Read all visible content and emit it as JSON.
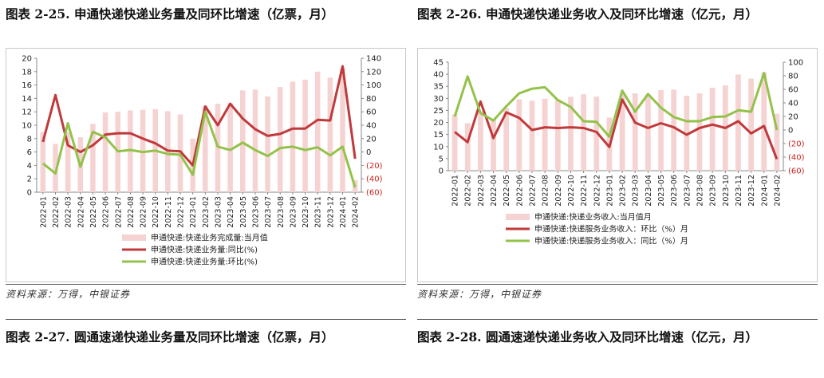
{
  "figures": [
    {
      "title": "图表 2-25. 申通快递快递业务量及同环比增速（亿票，月）",
      "source": "资料来源：万得，中银证券"
    },
    {
      "title": "图表 2-26. 申通快递快递业务收入及同环比增速（亿元，月）",
      "source": "资料来源：万得，中银证券"
    },
    {
      "title": "图表 2-27. 圆通速递快递业务量及同环比增速（亿票，月）"
    },
    {
      "title": "图表 2-28. 圆通速递快递业务收入及同环比增速（亿元，月）"
    }
  ],
  "colors": {
    "bar": "#f6d3d3",
    "red": "#c0393b",
    "green": "#93c24b",
    "neg": "#d0201c"
  },
  "chart_data": [
    {
      "type": "bar+line",
      "categories": [
        "2022-01",
        "2022-02",
        "2022-03",
        "2022-04",
        "2022-05",
        "2022-06",
        "2022-07",
        "2022-08",
        "2022-09",
        "2022-10",
        "2022-11",
        "2022-12",
        "2023-01",
        "2023-02",
        "2023-03",
        "2023-04",
        "2023-05",
        "2023-06",
        "2023-07",
        "2023-08",
        "2023-09",
        "2023-10",
        "2023-11",
        "2023-12",
        "2024-01",
        "2024-02"
      ],
      "left_axis": {
        "min": 0,
        "max": 20,
        "ticks": [
          "0",
          "2",
          "4",
          "6",
          "8",
          "10",
          "12",
          "14",
          "16",
          "18",
          "20"
        ]
      },
      "right_axis": {
        "min": -60,
        "max": 140,
        "ticks": [
          "(60)",
          "(40)",
          "(20)",
          "0",
          "20",
          "40",
          "60",
          "80",
          "100",
          "120",
          "140"
        ]
      },
      "series": [
        {
          "name": "申通快递:快递业务完成量:当月值",
          "kind": "bar",
          "axis": "left",
          "values": [
            9.0,
            7.2,
            9.0,
            8.2,
            10.2,
            11.9,
            12.0,
            12.2,
            12.3,
            12.4,
            12.1,
            11.6,
            8.0,
            12.9,
            13.2,
            13.3,
            15.2,
            15.3,
            14.3,
            15.7,
            16.5,
            16.8,
            18.0,
            17.1,
            18.5,
            1.8
          ]
        },
        {
          "name": "申通快递:快递业务量:同比(%)",
          "kind": "line",
          "axis": "right",
          "values": [
            15,
            85,
            10,
            0,
            10,
            26,
            28,
            28,
            20,
            13,
            2,
            1,
            -20,
            68,
            40,
            72,
            50,
            34,
            24,
            27,
            35,
            35,
            48,
            47,
            128,
            -10
          ]
        },
        {
          "name": "申通快递:快递业务量:环比(%)",
          "kind": "line",
          "axis": "right",
          "values": [
            -17,
            -32,
            43,
            -22,
            30,
            22,
            1,
            3,
            0,
            2,
            -3,
            -4,
            -34,
            60,
            8,
            3,
            14,
            3,
            -6,
            6,
            8,
            3,
            7,
            -5,
            8,
            -53
          ]
        }
      ]
    },
    {
      "type": "bar+line",
      "categories": [
        "2022-01",
        "2022-02",
        "2022-03",
        "2022-04",
        "2022-05",
        "2022-06",
        "2022-07",
        "2022-08",
        "2022-09",
        "2022-10",
        "2022-11",
        "2022-12",
        "2023-01",
        "2023-02",
        "2023-03",
        "2023-04",
        "2023-05",
        "2023-06",
        "2023-07",
        "2023-08",
        "2023-09",
        "2023-10",
        "2023-11",
        "2023-12",
        "2024-01",
        "2024-02"
      ],
      "left_axis": {
        "min": 0,
        "max": 45,
        "ticks": [
          "0",
          "5",
          "10",
          "15",
          "20",
          "25",
          "30",
          "35",
          "40",
          "45"
        ]
      },
      "right_axis": {
        "min": -60,
        "max": 100,
        "ticks": [
          "(60)",
          "(40)",
          "(20)",
          "0",
          "20",
          "40",
          "60",
          "80",
          "100"
        ]
      },
      "series": [
        {
          "name": "申通快递:快递业务收入:当月值月",
          "kind": "bar",
          "axis": "left",
          "values": [
            23.4,
            19.7,
            24.7,
            21.4,
            26.0,
            29.6,
            29.0,
            29.9,
            29.7,
            30.6,
            31.7,
            30.7,
            22.0,
            31.8,
            32.1,
            31.6,
            33.4,
            33.6,
            31.1,
            32.1,
            34.4,
            35.4,
            39.9,
            38.2,
            40.7,
            23.6
          ]
        },
        {
          "name": "申通快递:快递服务业务收入：环比（%）月",
          "kind": "line",
          "axis": "right",
          "values": [
            -3,
            -18,
            42,
            -12,
            26,
            18,
            0,
            4,
            3,
            4,
            3,
            -3,
            -25,
            45,
            11,
            3,
            10,
            4,
            -7,
            3,
            8,
            3,
            13,
            -5,
            6,
            -43
          ]
        },
        {
          "name": "申通快递:快递服务业务收入：同比（%）月",
          "kind": "line",
          "axis": "right",
          "values": [
            20,
            79,
            25,
            14,
            35,
            54,
            61,
            63,
            44,
            34,
            13,
            12,
            -10,
            58,
            27,
            53,
            33,
            19,
            13,
            13,
            19,
            20,
            29,
            27,
            84,
            0
          ]
        }
      ]
    }
  ],
  "charts": [
    {
      "left_ticks": [
        "0",
        "2",
        "4",
        "6",
        "8",
        "10",
        "12",
        "14",
        "16",
        "18",
        "20"
      ],
      "right_ticks": [
        "(60)",
        "(40)",
        "(20)",
        "0",
        "20",
        "40",
        "60",
        "80",
        "100",
        "120",
        "140"
      ],
      "legend": [
        {
          "kind": "bar",
          "label": "申通快递:快递业务完成量:当月值"
        },
        {
          "kind": "red",
          "label": "申通快递:快递业务量:同比(%)"
        },
        {
          "kind": "green",
          "label": "申通快递:快递业务量:环比(%)"
        }
      ]
    },
    {
      "left_ticks": [
        "0",
        "5",
        "10",
        "15",
        "20",
        "25",
        "30",
        "35",
        "40",
        "45"
      ],
      "right_ticks": [
        "(60)",
        "(40)",
        "(20)",
        "0",
        "20",
        "40",
        "60",
        "80",
        "100"
      ],
      "legend": [
        {
          "kind": "bar",
          "label": "申通快递:快递业务收入:当月值月"
        },
        {
          "kind": "red",
          "label": "申通快递:快递服务业务收入：环比（%）月"
        },
        {
          "kind": "green",
          "label": "申通快递:快递服务业务收入：同比（%）月"
        }
      ]
    }
  ]
}
